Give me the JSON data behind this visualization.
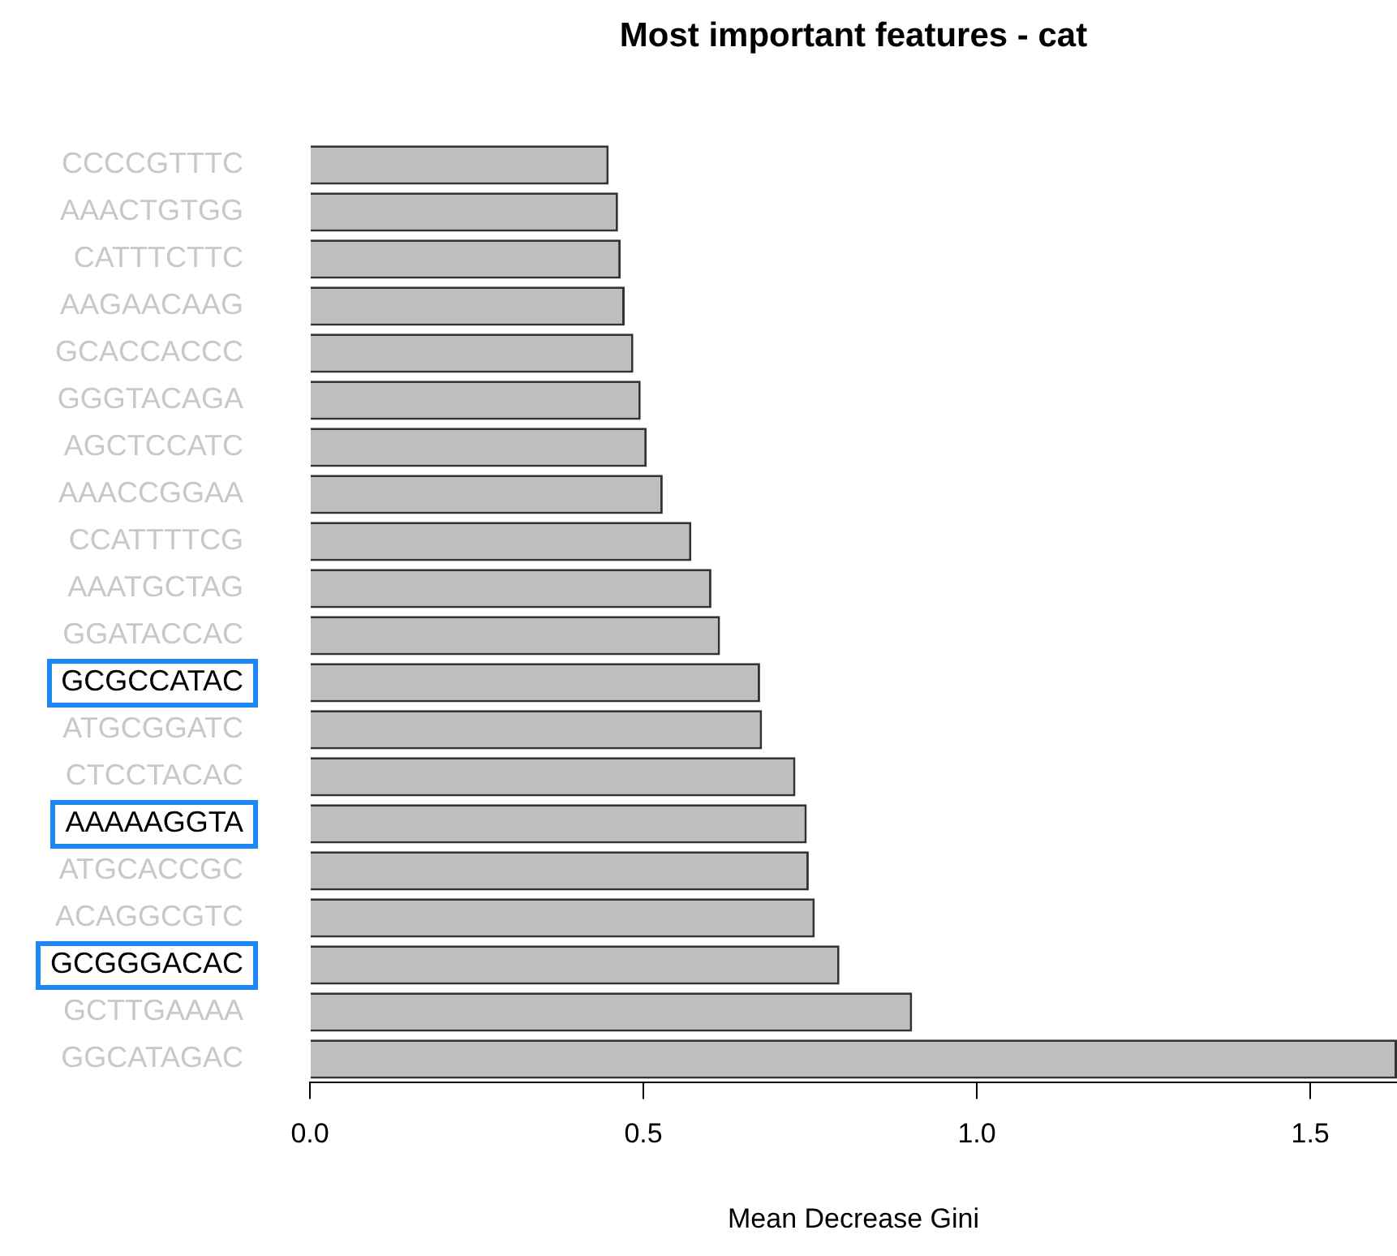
{
  "chart_data": {
    "type": "bar",
    "orientation": "horizontal",
    "title": "Most important features - cat",
    "xlabel": "Mean Decrease Gini",
    "categories": [
      "CCCCGTTTC",
      "AAACTGTGG",
      "CATTTCTTC",
      "AAGAACAAG",
      "GCACCACCC",
      "GGGTACAGA",
      "AGCTCCATC",
      "AAACCGGAA",
      "CCATTTTCG",
      "AAATGCTAG",
      "GGATACCAC",
      "GCGCCATAC",
      "ATGCGGATC",
      "CTCCTACAC",
      "AAAAAGGTA",
      "ATGCACCGC",
      "ACAGGCGTC",
      "GCGGGACAC",
      "GCTTGAAAA",
      "GGCATAGAC"
    ],
    "values": [
      0.448,
      0.462,
      0.466,
      0.472,
      0.485,
      0.496,
      0.505,
      0.529,
      0.572,
      0.602,
      0.615,
      0.675,
      0.678,
      0.728,
      0.745,
      0.748,
      0.757,
      0.794,
      0.903,
      1.63
    ],
    "color": "#bebebe",
    "xlim": [
      0,
      1.63
    ],
    "xticks": [
      {
        "value": 0,
        "label": "0.0"
      },
      {
        "value": 0.5,
        "label": "0.5"
      },
      {
        "value": 1,
        "label": "1.0"
      },
      {
        "value": 1.5,
        "label": "1.5"
      }
    ]
  }
}
